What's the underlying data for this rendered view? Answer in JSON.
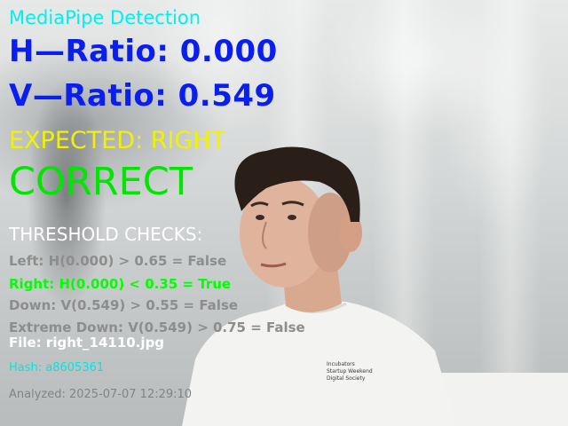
{
  "overlay": {
    "title": "MediaPipe Detection",
    "h_ratio": "H—Ratio: 0.000",
    "v_ratio": "V—Ratio: 0.549",
    "expected": "EXPECTED: RIGHT",
    "result": "CORRECT",
    "threshold_heading": "THRESHOLD CHECKS:",
    "checks": [
      {
        "text": "Left: H(0.000) > 0.65 = False"
      },
      {
        "text": "Right: H(0.000) < 0.35 = True"
      },
      {
        "text": "Down: V(0.549) > 0.55 = False"
      },
      {
        "text": "Extreme Down: V(0.549) > 0.75 = False"
      }
    ],
    "file": "File: right_14110.jpg",
    "hash": "Hash: a8605361",
    "analyzed": "Analyzed: 2025-07-07 12:29:10"
  },
  "camera": {
    "shirt_print_lines": [
      "Incubators",
      "Startup Weekend",
      "Digital Society"
    ]
  },
  "colors": {
    "title": "#00f0f0",
    "ratio": "#0a1ef0",
    "expected": "#f2f200",
    "correct": "#00e600",
    "true_check": "#00ff00",
    "false_check": "#8d8d8d",
    "hash": "#00e5e5"
  }
}
